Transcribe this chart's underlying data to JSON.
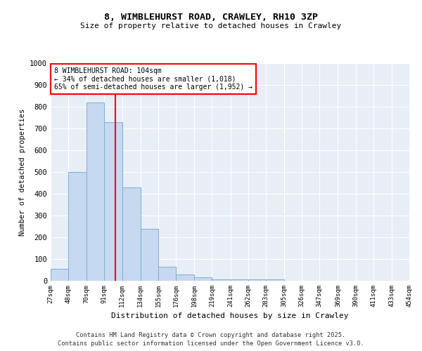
{
  "title": "8, WIMBLEHURST ROAD, CRAWLEY, RH10 3ZP",
  "subtitle": "Size of property relative to detached houses in Crawley",
  "xlabel": "Distribution of detached houses by size in Crawley",
  "ylabel": "Number of detached properties",
  "bin_edges": [
    27,
    48,
    70,
    91,
    112,
    134,
    155,
    176,
    198,
    219,
    241,
    262,
    283,
    305,
    326,
    347,
    369,
    390,
    411,
    433,
    454
  ],
  "bin_labels": [
    "27sqm",
    "48sqm",
    "70sqm",
    "91sqm",
    "112sqm",
    "134sqm",
    "155sqm",
    "176sqm",
    "198sqm",
    "219sqm",
    "241sqm",
    "262sqm",
    "283sqm",
    "305sqm",
    "326sqm",
    "347sqm",
    "369sqm",
    "390sqm",
    "411sqm",
    "433sqm",
    "454sqm"
  ],
  "bar_heights": [
    55,
    500,
    820,
    730,
    430,
    240,
    65,
    30,
    15,
    5,
    5,
    5,
    5,
    0,
    0,
    0,
    0,
    0,
    0,
    0
  ],
  "bar_color": "#c6d9f0",
  "bar_edge_color": "#7bafd4",
  "property_line_x": 104,
  "property_line_color": "red",
  "annotation_text": "8 WIMBLEHURST ROAD: 104sqm\n← 34% of detached houses are smaller (1,018)\n65% of semi-detached houses are larger (1,952) →",
  "ylim": [
    0,
    1000
  ],
  "yticks": [
    0,
    100,
    200,
    300,
    400,
    500,
    600,
    700,
    800,
    900,
    1000
  ],
  "background_color": "#e8eef5",
  "grid_color": "white",
  "footer_line1": "Contains HM Land Registry data © Crown copyright and database right 2025.",
  "footer_line2": "Contains public sector information licensed under the Open Government Licence v3.0."
}
